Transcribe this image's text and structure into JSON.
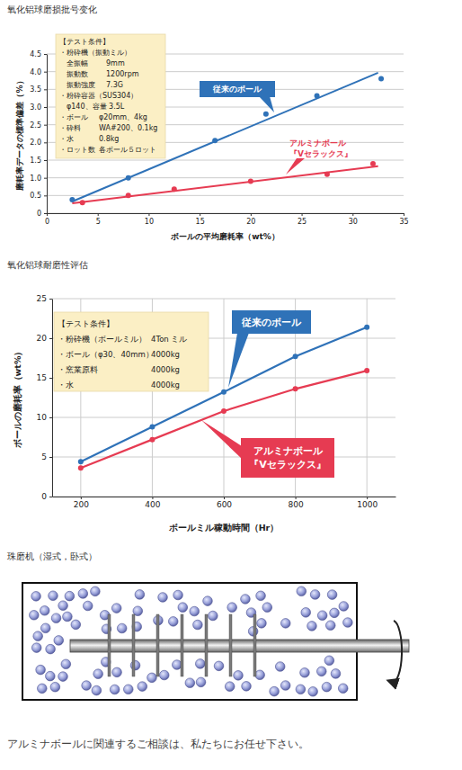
{
  "chart_data": [
    {
      "type": "scatter",
      "title": "氧化铝球磨损批号变化",
      "x_label": "ボールの平均磨耗率（wt%）",
      "y_label": "磨耗率データの標準偏差（%）",
      "xlim": [
        0,
        35
      ],
      "xticks": [
        0,
        5,
        10,
        15,
        20,
        25,
        30,
        35
      ],
      "ylim": [
        0,
        4.5
      ],
      "yticks": [
        0,
        0.5,
        {
          "value": 1,
          "label": "1.0"
        },
        1.5,
        {
          "value": 2,
          "label": "2.0"
        },
        2.5,
        {
          "value": 3,
          "label": "3.0"
        },
        3.5,
        {
          "value": 4,
          "label": "4.0"
        },
        4.5
      ],
      "grid": "y",
      "marker": "circle",
      "annotations": {
        "title": "【テスト条件】",
        "items": [
          {
            "label": "・粉砕機（振動ミル）",
            "details": [
              [
                "全振幅",
                "9mm"
              ],
              [
                "振動数",
                "1200rpm"
              ],
              [
                "振動強度",
                "7.3G"
              ]
            ]
          },
          {
            "label": "・粉砕容器（SUS304）",
            "details": [
              [
                "φ140、容量 3.5L"
              ]
            ]
          },
          {
            "label": "・ボール",
            "value": "φ20mm、4kg"
          },
          {
            "label": "・砕料",
            "value": "WA#200、0.1kg"
          },
          {
            "label": "・水",
            "value": "0.8kg"
          },
          {
            "label": "・ロット数",
            "value": "各ボール５ロット"
          }
        ]
      },
      "series": [
        {
          "name": "従来のボール",
          "color": "#2f72b8",
          "x": [
            2.5,
            8,
            16.5,
            21.5,
            26.5,
            32.8
          ],
          "values": [
            0.38,
            1.0,
            2.05,
            2.8,
            3.32,
            3.8
          ],
          "trend": {
            "x": [
              2.5,
              32.5
            ],
            "values": [
              0.33,
              3.97
            ]
          }
        },
        {
          "name": "アルミナボール\n『Vセラックス』",
          "color": "#e63b52",
          "x": [
            3.5,
            8,
            12.5,
            20,
            27.5,
            32
          ],
          "values": [
            0.3,
            0.5,
            0.68,
            0.9,
            1.1,
            1.4
          ],
          "trend": {
            "x": [
              2.5,
              32.5
            ],
            "values": [
              0.28,
              1.33
            ]
          }
        }
      ]
    },
    {
      "type": "line",
      "title": "氧化铝球耐磨性评估",
      "x_label": "ボールミル稼動時間（Hr）",
      "y_label": "ボールの磨耗率（wt%）",
      "x": [
        200,
        400,
        600,
        800,
        1000
      ],
      "xlim": [
        120,
        1080
      ],
      "xticks": [
        200,
        400,
        600,
        800,
        1000
      ],
      "ylim": [
        0,
        25
      ],
      "yticks": [
        0,
        5,
        10,
        15,
        20,
        25
      ],
      "grid": true,
      "marker": "circle",
      "annotations": {
        "title": "【テスト条件】",
        "items": [
          {
            "label": "・粉砕機（ボールミル）",
            "value": "4Ton ミル"
          },
          {
            "label": "・ボール（φ30、40mm）",
            "value": "4000kg"
          },
          {
            "label": "・窯業原料",
            "value": "4000kg"
          },
          {
            "label": "・水",
            "value": "4000kg"
          }
        ]
      },
      "series": [
        {
          "name": "従来のボール",
          "color": "#2f72b8",
          "values": [
            4.4,
            8.8,
            13.2,
            17.7,
            21.4
          ]
        },
        {
          "name": "アルミナボール\n『Vセラックス』",
          "color": "#e63b52",
          "values": [
            3.6,
            7.2,
            10.8,
            13.6,
            15.9
          ]
        }
      ]
    }
  ],
  "diagram": {
    "title": "珠磨机（湿式，卧式）"
  },
  "footer": "アルミナボールに関連するご相談は、私たちにお任せ下さい。"
}
